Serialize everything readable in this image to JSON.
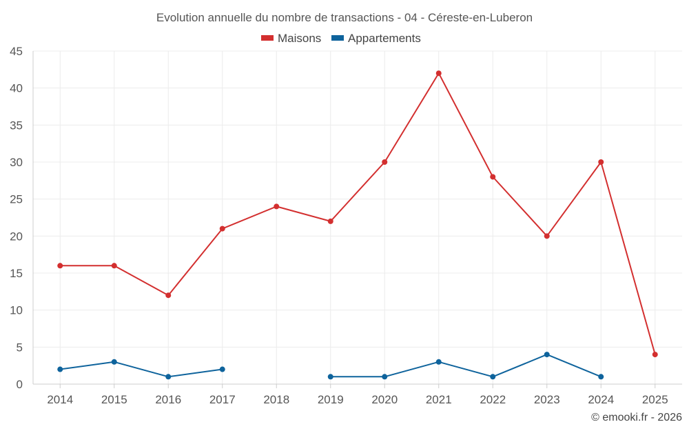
{
  "chart_data": {
    "type": "line",
    "title": "Evolution annuelle du nombre de transactions - 04 - Céreste-en-Luberon",
    "categories": [
      "2014",
      "2015",
      "2016",
      "2017",
      "2018",
      "2019",
      "2020",
      "2021",
      "2022",
      "2023",
      "2024",
      "2025"
    ],
    "series": [
      {
        "name": "Maisons",
        "color": "#d32f2f",
        "values": [
          16,
          16,
          12,
          21,
          24,
          22,
          30,
          42,
          28,
          20,
          30,
          4
        ]
      },
      {
        "name": "Appartements",
        "color": "#0e639c",
        "values": [
          2,
          3,
          1,
          2,
          null,
          1,
          1,
          3,
          1,
          4,
          1,
          null
        ]
      }
    ],
    "ylim": [
      0,
      45
    ],
    "yticks": [
      0,
      5,
      10,
      15,
      20,
      25,
      30,
      35,
      40,
      45
    ],
    "grid": true,
    "legend": "top-center",
    "xlabel": "",
    "ylabel": ""
  },
  "credit": "© emooki.fr - 2026"
}
